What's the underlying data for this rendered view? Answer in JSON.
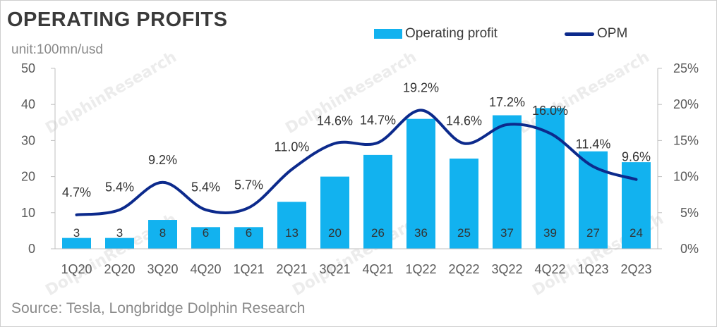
{
  "title": "OPERATING PROFITS",
  "unit": "unit:100mn/usd",
  "source": "Source: Tesla, Longbridge Dolphin Research",
  "watermark": "DolphinResearch",
  "legend": {
    "bar": "Operating profit",
    "line": "OPM"
  },
  "chart_data": {
    "type": "bar",
    "categories": [
      "1Q20",
      "2Q20",
      "3Q20",
      "4Q20",
      "1Q21",
      "2Q21",
      "3Q21",
      "4Q21",
      "1Q22",
      "2Q22",
      "3Q22",
      "4Q22",
      "1Q23",
      "2Q23"
    ],
    "series": [
      {
        "name": "Operating profit",
        "type": "bar",
        "axis": "left",
        "values": [
          3,
          3,
          8,
          6,
          6,
          13,
          20,
          26,
          36,
          25,
          37,
          39,
          27,
          24
        ],
        "labels": [
          "3",
          "3",
          "8",
          "6",
          "6",
          "13",
          "20",
          "26",
          "36",
          "25",
          "37",
          "39",
          "27",
          "24"
        ],
        "color": "#12b2ef"
      },
      {
        "name": "OPM",
        "type": "line",
        "axis": "right",
        "values": [
          4.7,
          5.4,
          9.2,
          5.4,
          5.7,
          11.0,
          14.6,
          14.7,
          19.2,
          14.6,
          17.2,
          16.0,
          11.4,
          9.6
        ],
        "labels": [
          "4.7%",
          "5.4%",
          "9.2%",
          "5.4%",
          "5.7%",
          "11.0%",
          "14.6%",
          "14.7%",
          "19.2%",
          "14.6%",
          "17.2%",
          "16.0%",
          "11.4%",
          "9.6%"
        ],
        "color": "#0c2a8c"
      }
    ],
    "y_left": {
      "lim": [
        0,
        50
      ],
      "ticks": [
        "0",
        "10",
        "20",
        "30",
        "40",
        "50"
      ]
    },
    "y_right": {
      "lim": [
        0,
        25
      ],
      "ticks": [
        "0%",
        "5%",
        "10%",
        "15%",
        "20%",
        "25%"
      ]
    },
    "grid": false,
    "legend_position": "top-right"
  }
}
